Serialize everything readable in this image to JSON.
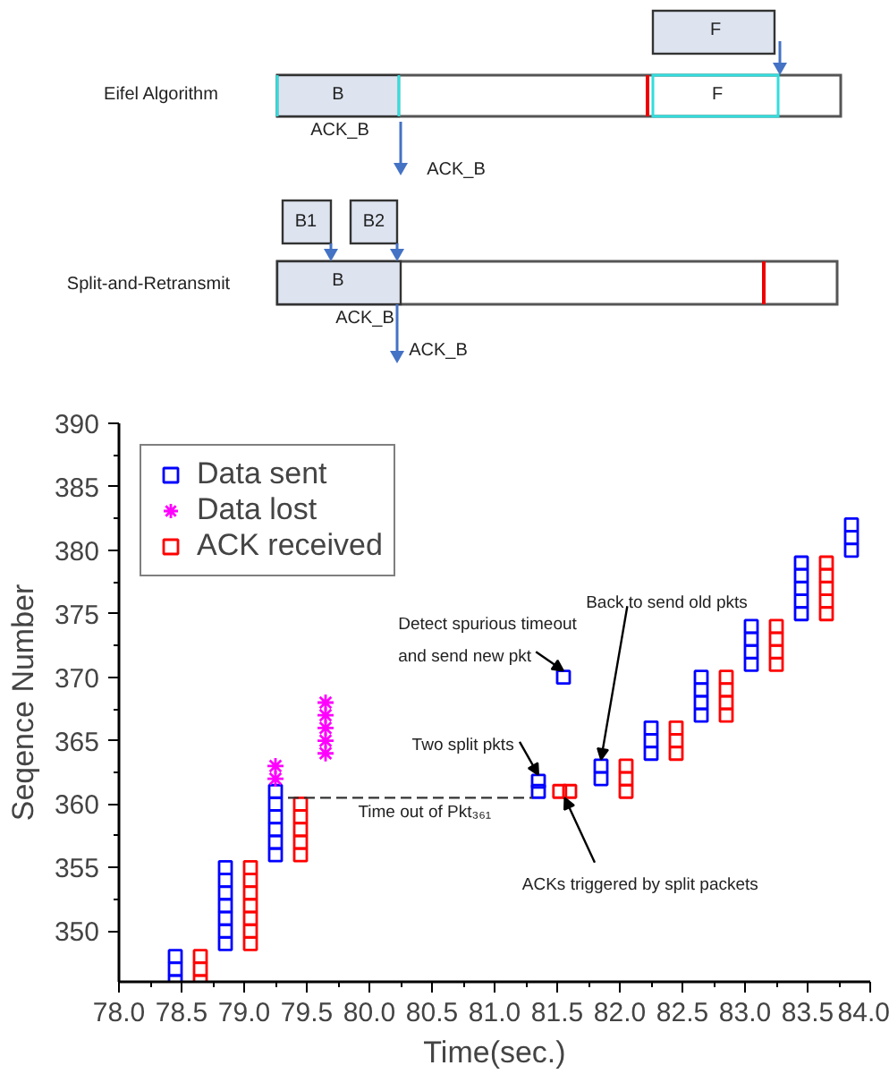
{
  "chart_data": [
    {
      "type": "other",
      "annotations": [
        "F",
        "Eifel Algorithm",
        "B",
        "F",
        "ACK_B",
        "ACK_B",
        "B1",
        "B2",
        "Split-and-Retransmit",
        "B",
        "ACK_B",
        "ACK_B"
      ]
    },
    {
      "type": "scatter",
      "xlabel": "Time(sec.)",
      "ylabel": "Seqence Number",
      "xlim": [
        78.0,
        84.0
      ],
      "ylim": [
        346,
        390
      ],
      "xticks": [
        {
          "value": 78,
          "label": "78.0"
        },
        {
          "value": 78.5,
          "label": "78.5"
        },
        {
          "value": 79,
          "label": "79.0"
        },
        {
          "value": 79.5,
          "label": "79.5"
        },
        {
          "value": 80,
          "label": "80.0"
        },
        {
          "value": 80.5,
          "label": "80.5"
        },
        {
          "value": 81,
          "label": "81.0"
        },
        {
          "value": 81.5,
          "label": "81.5"
        },
        {
          "value": 82,
          "label": "82.0"
        },
        {
          "value": 82.5,
          "label": "82.5"
        },
        {
          "value": 83,
          "label": "83.0"
        },
        {
          "value": 83.5,
          "label": "83.5"
        },
        {
          "value": 84,
          "label": "84.0"
        }
      ],
      "yticks": [
        350,
        355,
        360,
        365,
        370,
        375,
        380,
        385,
        390
      ],
      "grid": false,
      "legend": "top left",
      "series": [
        {
          "name": "Data sent",
          "color": "#0000ff",
          "marker": "square",
          "x": [
            78.45,
            78.45,
            78.45,
            78.85,
            78.85,
            78.85,
            78.85,
            78.85,
            78.85,
            78.85,
            79.25,
            79.25,
            79.25,
            79.25,
            79.25,
            79.25,
            81.35,
            81.35,
            81.55,
            81.85,
            81.85,
            82.25,
            82.25,
            82.25,
            82.65,
            82.65,
            82.65,
            82.65,
            83.05,
            83.05,
            83.05,
            83.05,
            83.45,
            83.45,
            83.45,
            83.45,
            83.45,
            83.85,
            83.85,
            83.85
          ],
          "values": [
            346,
            347,
            348,
            349,
            350,
            351,
            352,
            353,
            354,
            355,
            356,
            357,
            358,
            359,
            360,
            361,
            361,
            361.8,
            370,
            362,
            363,
            364,
            365,
            366,
            367,
            368,
            369,
            370,
            371,
            372,
            373,
            374,
            375,
            376,
            377,
            378,
            379,
            380,
            381,
            382
          ]
        },
        {
          "name": "Data lost",
          "color": "#ff00ff",
          "marker": "cross",
          "x": [
            79.25,
            79.25,
            79.65,
            79.65,
            79.65,
            79.65,
            79.65
          ],
          "values": [
            362,
            363,
            364,
            365,
            366,
            367,
            368
          ]
        },
        {
          "name": "ACK received",
          "color": "#ff0000",
          "marker": "square",
          "x": [
            78.65,
            78.65,
            78.65,
            79.05,
            79.05,
            79.05,
            79.05,
            79.05,
            79.05,
            79.05,
            79.45,
            79.45,
            79.45,
            79.45,
            79.45,
            81.52,
            81.6,
            82.05,
            82.05,
            82.05,
            82.45,
            82.45,
            82.45,
            82.85,
            82.85,
            82.85,
            82.85,
            83.25,
            83.25,
            83.25,
            83.25,
            83.65,
            83.65,
            83.65,
            83.65,
            83.65
          ],
          "values": [
            346,
            347,
            348,
            349,
            350,
            351,
            352,
            353,
            354,
            355,
            356,
            357,
            358,
            359,
            360,
            361,
            361,
            361,
            362,
            363,
            364,
            365,
            366,
            367,
            368,
            369,
            370,
            371,
            372,
            373,
            374,
            375,
            376,
            377,
            378,
            379
          ]
        },
        {
          "type": "line",
          "color": "#333333",
          "line_style": "dashed",
          "marker": "none",
          "x": [
            79.35,
            81.3
          ],
          "values": [
            360.5,
            360.5
          ]
        }
      ],
      "annotations": [
        "Detect spurious timeout",
        {
          "text": "and send new pkt",
          "x": 81.55,
          "y": 370
        },
        {
          "text": "Two split pkts",
          "x": 81.35,
          "y": 361.8
        },
        {
          "text": "Back to send old pkts",
          "x": 81.85,
          "y": 363
        },
        {
          "text": "ACKs triggered by split packets",
          "x": 81.56,
          "y": 361
        },
        "Time out of Pkt₃₆₁"
      ]
    }
  ]
}
